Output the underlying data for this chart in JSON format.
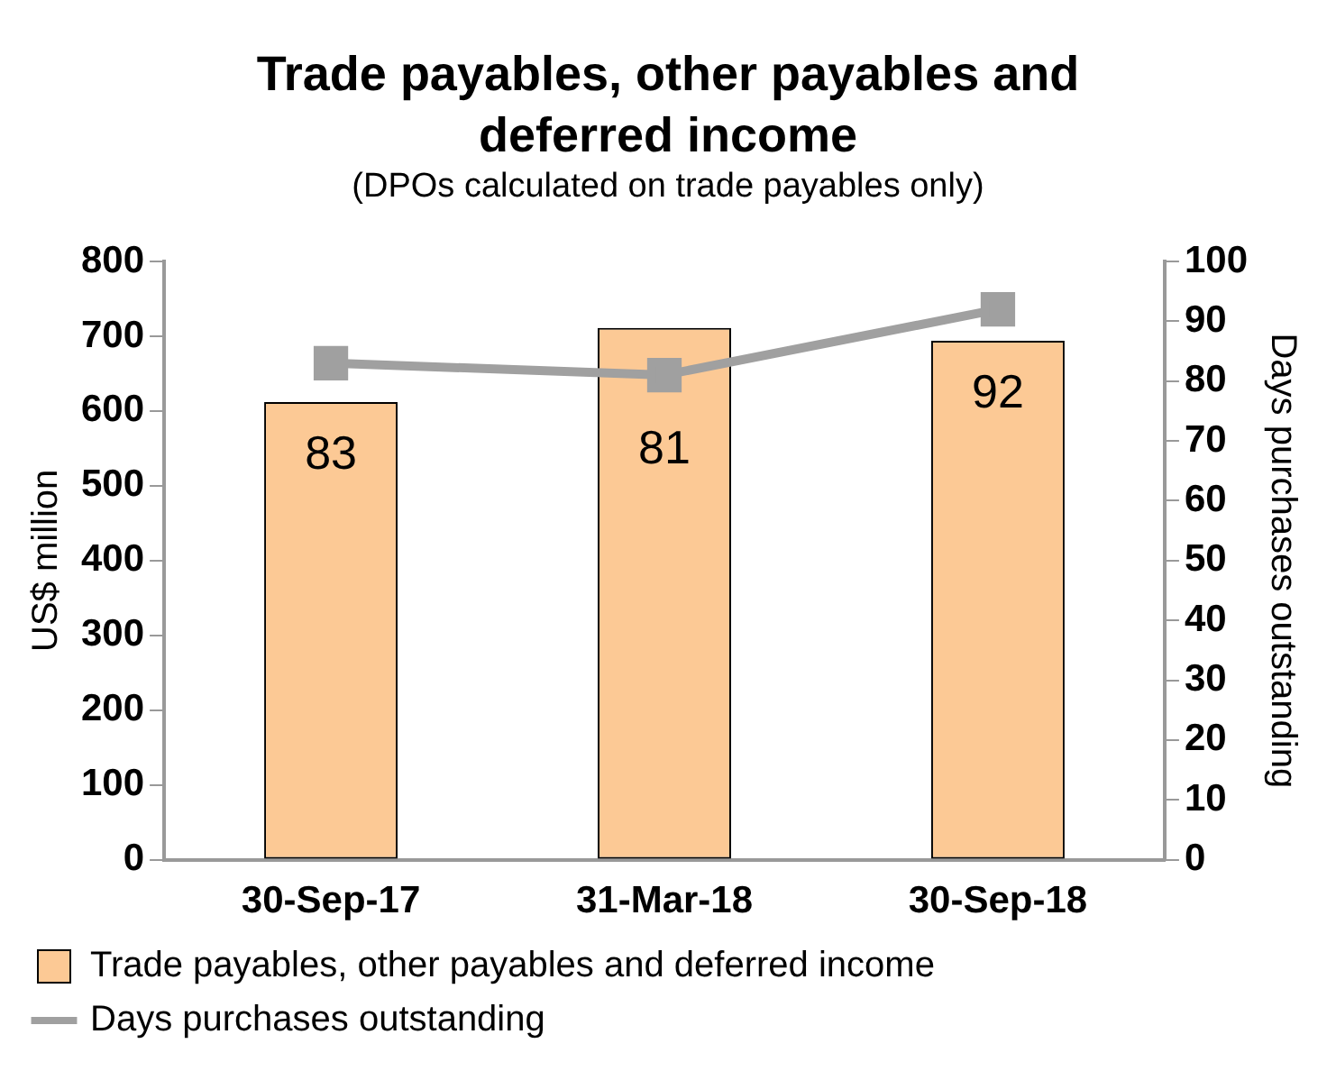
{
  "chart_data": {
    "type": "bar",
    "title": "Trade payables, other payables and deferred income",
    "subtitle": "(DPOs calculated on trade payables only)",
    "ylabel": "US$ million",
    "y2label": "Days purchases outstanding",
    "categories": [
      "30-Sep-17",
      "31-Mar-18",
      "30-Sep-18"
    ],
    "series": [
      {
        "name": "Trade payables, other payables and deferred income",
        "color": "#fcc995",
        "values": [
          612,
          711,
          694
        ]
      },
      {
        "name": "Days purchases outstanding",
        "type": "line",
        "axis": "y2",
        "color": "#a0a0a0",
        "values": [
          83,
          81,
          92
        ],
        "value_labels": [
          "83",
          "81",
          "92"
        ]
      }
    ],
    "ylim": [
      0,
      800
    ],
    "yticks": [
      0,
      100,
      200,
      300,
      400,
      500,
      600,
      700,
      800
    ],
    "y2lim": [
      0,
      100
    ],
    "y2ticks": [
      0,
      10,
      20,
      30,
      40,
      50,
      60,
      70,
      80,
      90,
      100
    ],
    "grid": false,
    "legend": "bottom",
    "marker": "square",
    "line_style": "solid"
  }
}
